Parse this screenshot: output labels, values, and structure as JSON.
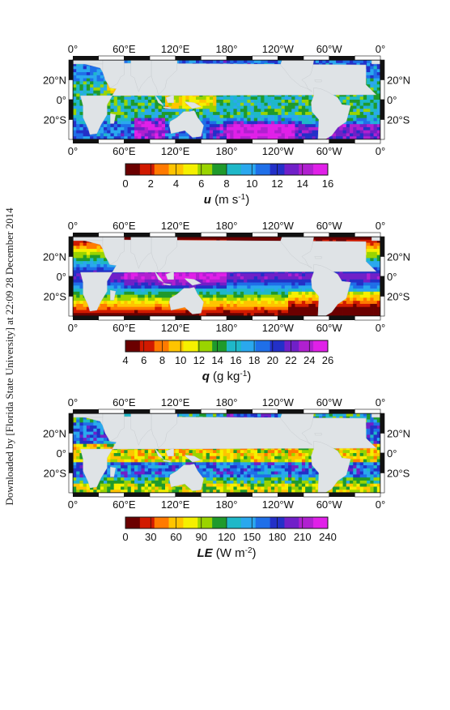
{
  "side_note": "Downloaded by [Florida State University] at 22:09 28 December 2014",
  "colors": {
    "land": "#dfe3e6",
    "colorbar": [
      "#6b0000",
      "#d11a00",
      "#ff7a00",
      "#ffc400",
      "#f5f000",
      "#9ad400",
      "#1f9a2c",
      "#1fb8c8",
      "#2aa8ee",
      "#1f6fe8",
      "#2330c8",
      "#7020c8",
      "#b020d0",
      "#e020e8"
    ]
  },
  "lon_labels": [
    "0°",
    "60°E",
    "120°E",
    "180°",
    "120°W",
    "60°W",
    "0°"
  ],
  "lat_labels_left": [
    "20°N",
    "0°",
    "20°S"
  ],
  "lat_labels_right": [
    "20°N",
    "0°",
    "20°S"
  ],
  "panels": [
    {
      "id": "u",
      "colorbar_ticks": [
        "0",
        "2",
        "4",
        "6",
        "8",
        "10",
        "12",
        "14",
        "16"
      ],
      "var_symbol": "u",
      "var_unit": "(m s",
      "var_exp": "-1",
      "var_close": ")"
    },
    {
      "id": "q",
      "colorbar_ticks": [
        "4",
        "6",
        "8",
        "10",
        "12",
        "14",
        "16",
        "18",
        "20",
        "22",
        "24",
        "26"
      ],
      "var_symbol": "q",
      "var_unit": "(g kg",
      "var_exp": "-1",
      "var_close": ")"
    },
    {
      "id": "le",
      "colorbar_ticks": [
        "0",
        "30",
        "60",
        "90",
        "120",
        "150",
        "180",
        "210",
        "240"
      ],
      "var_symbol": "LE",
      "var_unit": "(W m",
      "var_exp": "-2",
      "var_close": ")"
    }
  ]
}
